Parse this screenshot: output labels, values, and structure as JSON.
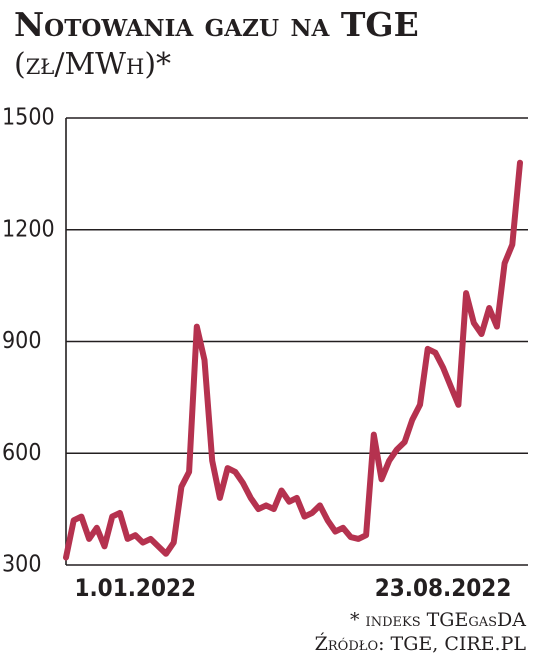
{
  "title": "Notowania gazu na TGE",
  "subtitle": "(zł/MWh)*",
  "chart_data": {
    "type": "line",
    "categories": [
      null,
      null,
      null,
      null,
      null,
      null,
      null,
      null,
      null,
      "1.01.2022",
      null,
      null,
      null,
      null,
      null,
      null,
      null,
      null,
      null,
      null,
      null,
      null,
      null,
      null,
      null,
      null,
      null,
      null,
      null,
      null,
      null,
      null,
      null,
      null,
      null,
      null,
      null,
      null,
      null,
      null,
      null,
      null,
      null,
      null,
      null,
      null,
      null,
      null,
      null,
      "23.08.2022",
      null,
      null,
      null,
      null,
      null,
      null,
      null,
      null,
      null,
      null
    ],
    "series": [
      {
        "color": "#b5324f",
        "values": [
          320,
          420,
          430,
          370,
          400,
          350,
          430,
          440,
          370,
          380,
          360,
          370,
          350,
          330,
          360,
          510,
          550,
          940,
          850,
          580,
          480,
          560,
          550,
          520,
          480,
          450,
          460,
          450,
          500,
          470,
          480,
          430,
          440,
          460,
          420,
          390,
          400,
          375,
          370,
          380,
          650,
          530,
          580,
          610,
          630,
          690,
          730,
          880,
          870,
          830,
          780,
          730,
          1030,
          950,
          920,
          990,
          940,
          1110,
          1160,
          1380
        ]
      }
    ],
    "ylim": [
      300,
      1500
    ],
    "yticks": [
      300,
      600,
      900,
      1200,
      1500
    ],
    "grid": true
  },
  "notes": [
    "* indeks TGEgasDA",
    "Źródło: TGE, CIRE.PL"
  ]
}
